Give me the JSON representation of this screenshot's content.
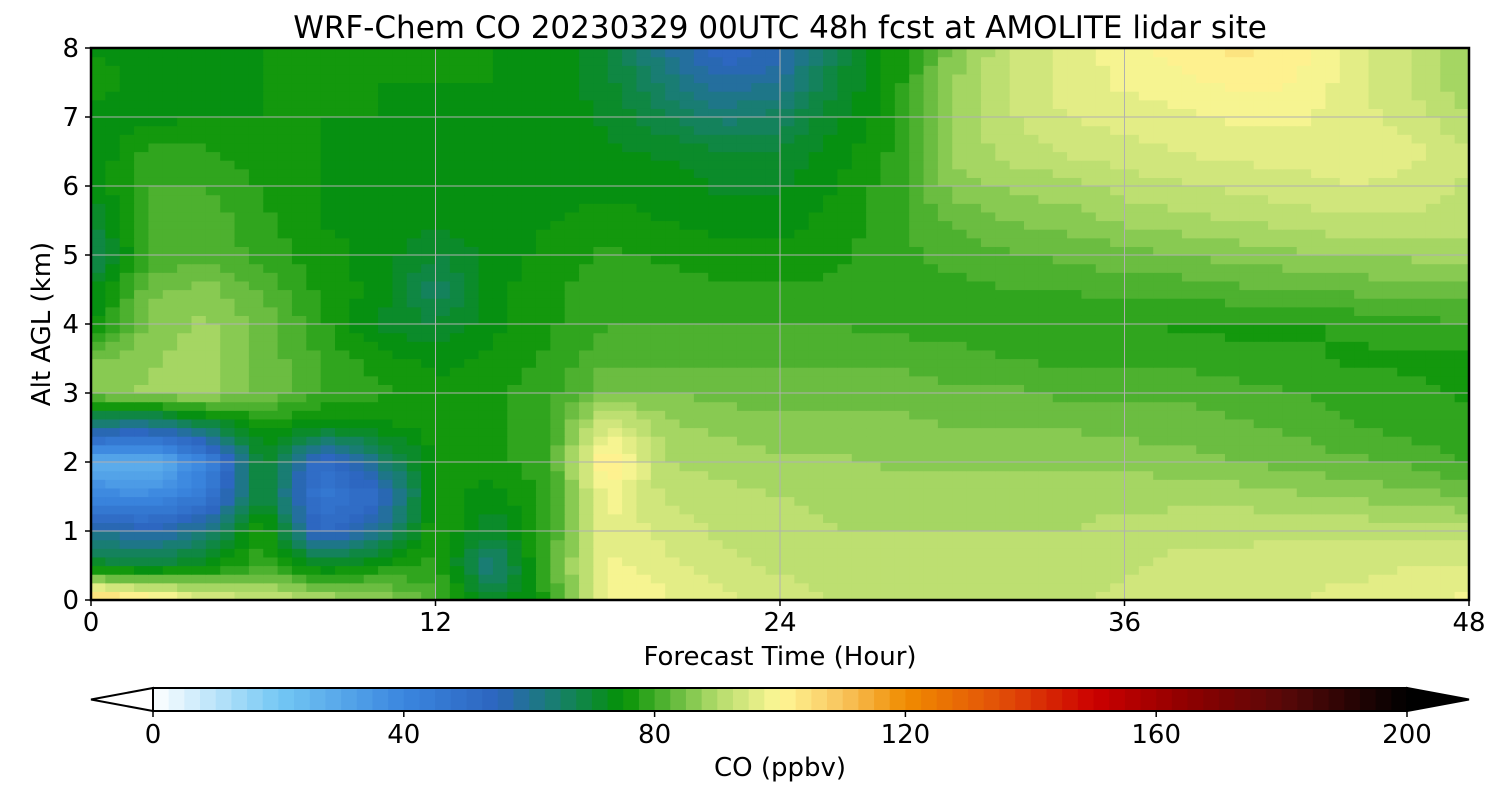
{
  "chart_data": {
    "type": "heatmap",
    "title": "WRF-Chem CO  20230329 00UTC 48h fcst at AMOLITE lidar site",
    "xlabel": "Forecast Time (Hour)",
    "ylabel": "Alt AGL (km)",
    "xlim": [
      0,
      48
    ],
    "ylim": [
      0,
      8
    ],
    "x_ticks": [
      "0",
      "12",
      "24",
      "36",
      "48"
    ],
    "y_ticks": [
      "0",
      "1",
      "2",
      "3",
      "4",
      "5",
      "6",
      "7",
      "8"
    ],
    "grid": true,
    "x": [
      0,
      2,
      4,
      6,
      8,
      10,
      12,
      14,
      16,
      18,
      20,
      22,
      24,
      26,
      28,
      30,
      32,
      34,
      36,
      38,
      40,
      42,
      44,
      46,
      48
    ],
    "y": [
      0,
      0.5,
      1,
      1.5,
      2,
      2.5,
      3,
      3.5,
      4,
      4.5,
      5,
      5.5,
      6,
      6.5,
      7,
      7.5,
      8
    ],
    "z": [
      [
        110,
        104,
        97,
        93,
        90,
        88,
        82,
        70,
        78,
        100,
        98,
        96,
        94,
        92,
        92,
        92,
        92,
        92,
        93,
        94,
        95,
        95,
        96,
        97,
        98
      ],
      [
        72,
        70,
        74,
        80,
        72,
        76,
        78,
        62,
        82,
        98,
        96,
        93,
        92,
        91,
        91,
        91,
        91,
        91,
        92,
        93,
        93,
        94,
        94,
        95,
        95
      ],
      [
        60,
        56,
        62,
        78,
        52,
        60,
        78,
        70,
        80,
        97,
        94,
        92,
        91,
        90,
        90,
        90,
        90,
        90,
        91,
        92,
        92,
        92,
        92,
        92,
        91
      ],
      [
        40,
        38,
        46,
        72,
        46,
        52,
        76,
        74,
        78,
        99,
        92,
        91,
        90,
        89,
        89,
        89,
        89,
        89,
        89,
        89,
        89,
        88,
        87,
        86,
        85
      ],
      [
        28,
        26,
        40,
        72,
        50,
        62,
        76,
        76,
        80,
        104,
        90,
        89,
        88,
        88,
        87,
        87,
        87,
        87,
        87,
        86,
        85,
        84,
        83,
        82,
        80
      ],
      [
        60,
        58,
        66,
        76,
        72,
        74,
        76,
        76,
        80,
        96,
        88,
        87,
        86,
        86,
        86,
        85,
        85,
        85,
        84,
        84,
        83,
        82,
        80,
        79,
        78
      ],
      [
        85,
        88,
        89,
        84,
        80,
        78,
        76,
        77,
        79,
        85,
        85,
        84,
        84,
        84,
        84,
        83,
        83,
        82,
        82,
        82,
        81,
        80,
        79,
        78,
        77
      ],
      [
        85,
        87,
        89,
        84,
        80,
        76,
        74,
        76,
        78,
        82,
        82,
        82,
        82,
        82,
        82,
        81,
        80,
        79,
        79,
        79,
        78,
        78,
        77,
        77,
        76
      ],
      [
        74,
        86,
        88,
        84,
        78,
        72,
        70,
        74,
        77,
        80,
        80,
        80,
        80,
        80,
        79,
        79,
        78,
        78,
        78,
        77,
        77,
        77,
        78,
        79,
        80
      ],
      [
        72,
        84,
        86,
        82,
        77,
        74,
        66,
        74,
        77,
        79,
        79,
        78,
        78,
        78,
        78,
        79,
        80,
        80,
        81,
        81,
        82,
        82,
        83,
        84,
        84
      ],
      [
        66,
        80,
        82,
        79,
        76,
        74,
        70,
        73,
        76,
        78,
        77,
        76,
        76,
        77,
        79,
        81,
        82,
        83,
        84,
        85,
        86,
        87,
        88,
        88,
        88
      ],
      [
        70,
        80,
        82,
        78,
        75,
        74,
        73,
        74,
        75,
        76,
        75,
        74,
        74,
        76,
        79,
        83,
        85,
        86,
        88,
        89,
        90,
        91,
        92,
        92,
        92
      ],
      [
        73,
        80,
        80,
        77,
        75,
        74,
        74,
        74,
        74,
        74,
        74,
        72,
        72,
        75,
        79,
        86,
        88,
        89,
        91,
        92,
        93,
        94,
        95,
        94,
        92
      ],
      [
        73,
        78,
        78,
        76,
        75,
        74,
        74,
        74,
        74,
        73,
        72,
        70,
        70,
        74,
        78,
        88,
        91,
        93,
        94,
        95,
        96,
        96,
        97,
        96,
        93
      ],
      [
        74,
        74,
        75,
        75,
        75,
        75,
        74,
        74,
        74,
        72,
        68,
        64,
        66,
        72,
        77,
        88,
        92,
        95,
        96,
        97,
        98,
        98,
        96,
        94,
        90
      ],
      [
        76,
        74,
        74,
        75,
        76,
        75,
        75,
        75,
        74,
        71,
        64,
        58,
        60,
        70,
        76,
        87,
        93,
        96,
        98,
        99,
        101,
        100,
        96,
        92,
        88
      ],
      [
        75,
        74,
        74,
        75,
        76,
        75,
        75,
        75,
        74,
        70,
        60,
        52,
        56,
        68,
        76,
        86,
        92,
        96,
        99,
        101,
        103,
        101,
        96,
        92,
        88
      ]
    ],
    "colorbar": {
      "label": "CO  (ppbv)",
      "min": 0,
      "max": 200,
      "step": 2.5,
      "extend": "both",
      "ticks": [
        "0",
        "40",
        "80",
        "120",
        "160",
        "200"
      ],
      "stops": [
        {
          "v": 0,
          "c": "#ffffff"
        },
        {
          "v": 20,
          "c": "#74c8f4"
        },
        {
          "v": 40,
          "c": "#3a86df"
        },
        {
          "v": 55,
          "c": "#2c64be"
        },
        {
          "v": 65,
          "c": "#168068"
        },
        {
          "v": 75,
          "c": "#049204"
        },
        {
          "v": 90,
          "c": "#b4dc6c"
        },
        {
          "v": 100,
          "c": "#fff796"
        },
        {
          "v": 110,
          "c": "#f8c45c"
        },
        {
          "v": 120,
          "c": "#f08c00"
        },
        {
          "v": 135,
          "c": "#e25008"
        },
        {
          "v": 150,
          "c": "#cc0000"
        },
        {
          "v": 165,
          "c": "#8e0000"
        },
        {
          "v": 180,
          "c": "#5a0808"
        },
        {
          "v": 200,
          "c": "#000000"
        }
      ]
    }
  }
}
